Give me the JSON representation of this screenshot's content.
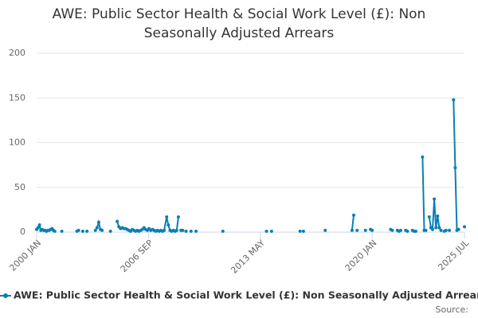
{
  "chart_data": {
    "type": "line",
    "title": "AWE: Public Sector Health & Social Work Level (£): Non Seasonally Adjusted Arrears",
    "source": "Source:",
    "xlim": [
      2000,
      2025.5
    ],
    "xticks": [
      {
        "value": 2000,
        "label": "2000 JAN"
      },
      {
        "value": 2006.67,
        "label": "2006 SEP"
      },
      {
        "value": 2013.33,
        "label": "2013 MAY"
      },
      {
        "value": 2020,
        "label": "2020 JAN"
      },
      {
        "value": 2025.5,
        "label": "2025 JUL"
      }
    ],
    "ylim": [
      0,
      200
    ],
    "yticks": [
      0,
      50,
      100,
      150,
      200
    ],
    "grid": true,
    "x": [
      2000.0,
      2000.08,
      2000.17,
      2000.25,
      2000.33,
      2000.42,
      2000.5,
      2000.58,
      2000.67,
      2000.75,
      2000.83,
      2000.92,
      2001.0,
      2001.08,
      null,
      2001.5,
      null,
      2002.4,
      2002.5,
      null,
      2002.75,
      null,
      2003.0,
      null,
      2003.5,
      2003.6,
      2003.7,
      2003.8,
      2003.9,
      null,
      2004.4,
      null,
      2004.8,
      2004.9,
      2005.0,
      2005.1,
      2005.2,
      2005.3,
      2005.4,
      2005.5,
      2005.6,
      2005.7,
      2005.8,
      2005.9,
      2006.0,
      2006.1,
      2006.2,
      2006.3,
      2006.4,
      2006.5,
      2006.6,
      2006.7,
      2006.8,
      2006.9,
      2007.0,
      2007.1,
      2007.2,
      2007.3,
      2007.4,
      2007.5,
      2007.6,
      2007.75,
      2007.85,
      2007.95,
      2008.05,
      2008.15,
      2008.25,
      2008.35,
      2008.45,
      null,
      2008.6,
      2008.7,
      null,
      2008.9,
      null,
      2009.2,
      null,
      2009.5,
      null,
      2011.1,
      null,
      2013.7,
      null,
      2014.0,
      null,
      2015.7,
      null,
      2015.9,
      null,
      2017.2,
      null,
      2018.8,
      2018.9,
      null,
      2019.1,
      null,
      2019.6,
      null,
      2019.9,
      2020.0,
      null,
      2021.1,
      2021.2,
      null,
      2021.5,
      2021.6,
      2021.7,
      null,
      2022.0,
      2022.1,
      null,
      2022.4,
      2022.5,
      2022.6,
      null,
      2023.0,
      2023.1,
      2023.2,
      null,
      2023.4,
      2023.5,
      2023.6,
      2023.7,
      2023.8,
      2023.9,
      2024.0,
      2024.1,
      null,
      2024.3,
      2024.4,
      null,
      2024.6,
      null,
      2024.85,
      2024.95,
      2025.05,
      2025.15,
      null,
      2025.5
    ],
    "series": [
      {
        "name": "AWE: Public Sector Health & Social Work Level (£): Non Seasonally Adjusted Arrears",
        "color": "#0a7fb5",
        "values": [
          3,
          5,
          8,
          2,
          3,
          2,
          2,
          1,
          2,
          2,
          3,
          4,
          2,
          1,
          null,
          1,
          null,
          1,
          2,
          null,
          1,
          null,
          1,
          null,
          2,
          5,
          11,
          3,
          2,
          null,
          1,
          null,
          12,
          6,
          4,
          5,
          4,
          4,
          3,
          2,
          1,
          3,
          2,
          1,
          2,
          1,
          2,
          3,
          5,
          3,
          2,
          4,
          2,
          3,
          2,
          1,
          2,
          1,
          2,
          1,
          2,
          17,
          8,
          2,
          1,
          2,
          1,
          2,
          17,
          null,
          2,
          2,
          null,
          1,
          null,
          1,
          null,
          1,
          null,
          1,
          null,
          1,
          null,
          1,
          null,
          1,
          null,
          1,
          null,
          2,
          null,
          2,
          19,
          null,
          2,
          null,
          2,
          null,
          3,
          2,
          null,
          3,
          2,
          null,
          2,
          1,
          2,
          null,
          2,
          1,
          null,
          2,
          1,
          1,
          null,
          84,
          2,
          2,
          null,
          17,
          5,
          3,
          37,
          5,
          18,
          5,
          2,
          null,
          1,
          2,
          null,
          2,
          null,
          148,
          72,
          2,
          3,
          null,
          6
        ]
      }
    ]
  }
}
